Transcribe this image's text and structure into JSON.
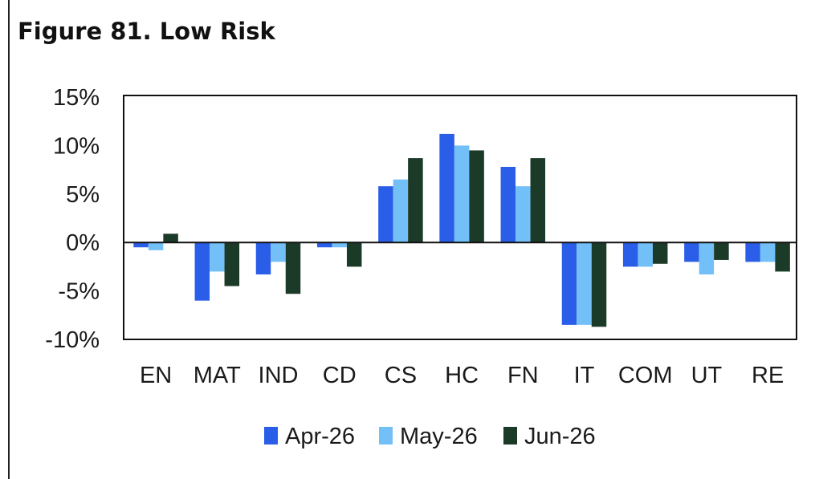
{
  "title": "Figure 81. Low Risk",
  "chart_data": {
    "type": "bar",
    "title": "Figure 81. Low Risk",
    "xlabel": "",
    "ylabel": "",
    "categories": [
      "EN",
      "MAT",
      "IND",
      "CD",
      "CS",
      "HC",
      "FN",
      "IT",
      "COM",
      "UT",
      "RE"
    ],
    "series": [
      {
        "name": "Apr-26",
        "color": "#2B5EE8",
        "values": [
          -0.5,
          -6.0,
          -3.3,
          -0.5,
          5.8,
          11.2,
          7.8,
          -8.5,
          -2.5,
          -2.0,
          -2.0
        ]
      },
      {
        "name": "May-26",
        "color": "#73C0F8",
        "values": [
          -0.8,
          -3.0,
          -2.0,
          -0.5,
          6.5,
          10.0,
          5.8,
          -8.5,
          -2.5,
          -3.3,
          -2.0
        ]
      },
      {
        "name": "Jun-26",
        "color": "#1C3A28",
        "values": [
          0.9,
          -4.5,
          -5.3,
          -2.5,
          8.7,
          9.5,
          8.7,
          -8.7,
          -2.2,
          -1.8,
          -3.0
        ]
      }
    ],
    "ylim": [
      -10,
      15
    ],
    "yticks": [
      15,
      10,
      5,
      0,
      -5,
      -10
    ],
    "ytick_labels": [
      "15%",
      "10%",
      "5%",
      "0%",
      "-5%",
      "-10%"
    ],
    "grid": false,
    "legend_position": "bottom"
  }
}
